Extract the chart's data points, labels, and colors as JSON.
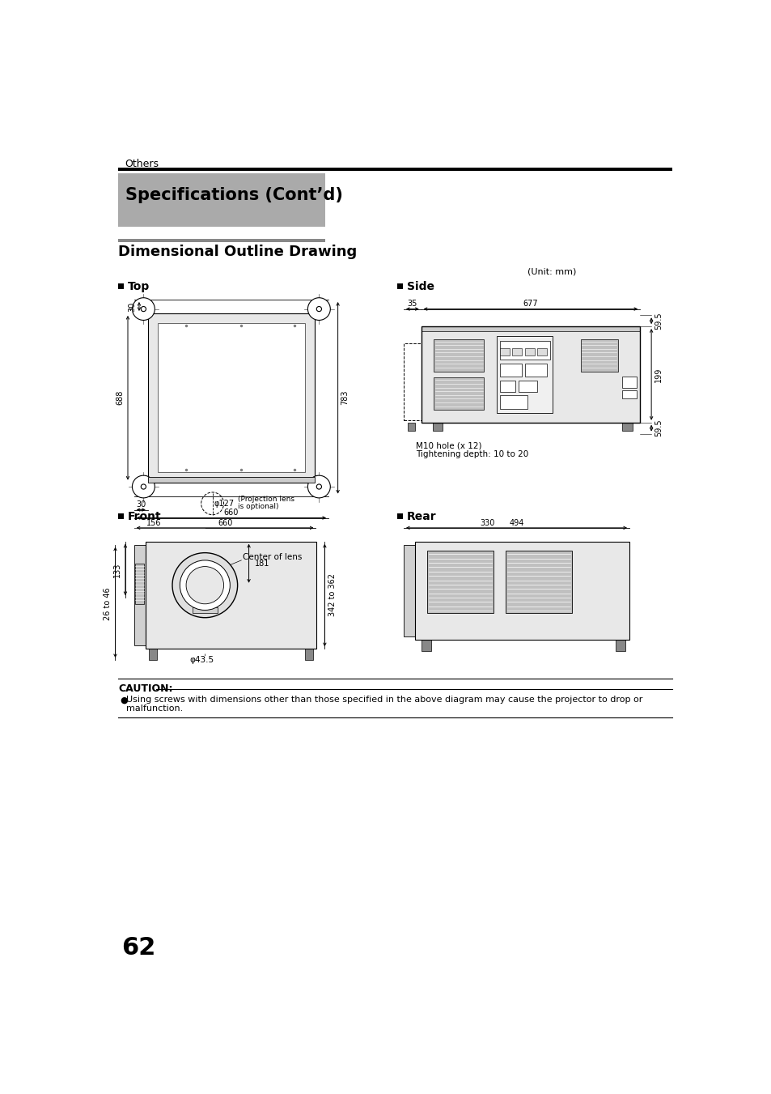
{
  "page_title": "Others",
  "section_title": "Specifications (Cont’d)",
  "drawing_title": "Dimensional Outline Drawing",
  "unit_label": "(Unit: mm)",
  "top_label": "Top",
  "side_label": "Side",
  "front_label": "Front",
  "rear_label": "Rear",
  "caution_title": "CAUTION:",
  "caution_line1": "Using screws with dimensions other than those specified in the above diagram may cause the projector to drop or",
  "caution_line2": "malfunction.",
  "page_number": "62",
  "bg": "#ffffff",
  "black": "#000000",
  "gray_section": "#aaaaaa",
  "gray_bar": "#999999",
  "gray_body": "#e8e8e8",
  "gray_medium": "#c0c0c0",
  "gray_dark": "#888888"
}
